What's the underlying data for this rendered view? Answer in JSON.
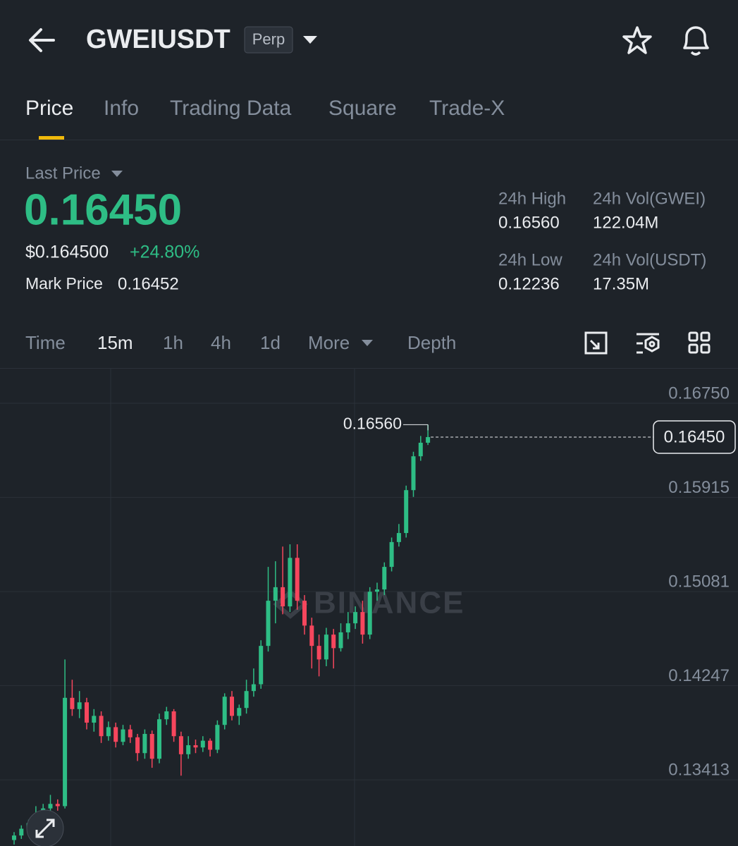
{
  "header": {
    "symbol": "GWEIUSDT",
    "badge": "Perp"
  },
  "tabs": [
    "Price",
    "Info",
    "Trading Data",
    "Square",
    "Trade-X"
  ],
  "ticker": {
    "last_price_label": "Last Price",
    "last_price": "0.16450",
    "usd_price": "$0.164500",
    "change": "+24.80%",
    "mark_price_label": "Mark Price",
    "mark_price": "0.16452",
    "stats": [
      {
        "label": "24h High",
        "value": "0.16560"
      },
      {
        "label": "24h Vol(GWEI)",
        "value": "122.04M"
      },
      {
        "label": "24h Low",
        "value": "0.12236"
      },
      {
        "label": "24h Vol(USDT)",
        "value": "17.35M"
      }
    ]
  },
  "intervals": [
    "Time",
    "15m",
    "1h",
    "4h",
    "1d",
    "More",
    "Depth"
  ],
  "chart_data": {
    "type": "candlestick",
    "watermark": "BINANCE",
    "up_color": "#2ebd85",
    "down_color": "#f6465d",
    "grid": true,
    "ylim": [
      0.12827,
      0.17062
    ],
    "yticks": [
      {
        "value": 0.1675,
        "label": "0.16750"
      },
      0.15915,
      0.15081,
      0.14247,
      0.13413
    ],
    "high_marker": {
      "value": 0.1656,
      "label": "0.16560"
    },
    "last_marker": {
      "value": 0.1645,
      "label": "0.16450"
    },
    "open": [
      0.1288,
      0.1292,
      0.1298,
      0.1303,
      0.131,
      0.1316,
      0.132,
      0.1318,
      0.1414,
      0.1404,
      0.141,
      0.1392,
      0.1398,
      0.138,
      0.1388,
      0.1375,
      0.1386,
      0.1379,
      0.1365,
      0.1382,
      0.136,
      0.1395,
      0.1402,
      0.138,
      0.1364,
      0.1372,
      0.137,
      0.1376,
      0.1368,
      0.139,
      0.1415,
      0.1398,
      0.1405,
      0.142,
      0.1426,
      0.146,
      0.15,
      0.1512,
      0.1495,
      0.1538,
      0.15,
      0.1478,
      0.146,
      0.1448,
      0.147,
      0.1458,
      0.1472,
      0.148,
      0.149,
      0.147,
      0.1508,
      0.151,
      0.153,
      0.1552,
      0.156,
      0.1598,
      0.1628,
      0.164
    ],
    "high": [
      0.1295,
      0.1301,
      0.1306,
      0.1318,
      0.132,
      0.1328,
      0.1324,
      0.1448,
      0.143,
      0.142,
      0.1414,
      0.1404,
      0.1402,
      0.1393,
      0.1392,
      0.139,
      0.139,
      0.1382,
      0.1386,
      0.1385,
      0.14,
      0.1406,
      0.1404,
      0.1384,
      0.138,
      0.1377,
      0.138,
      0.1378,
      0.1394,
      0.1418,
      0.142,
      0.1408,
      0.143,
      0.144,
      0.1465,
      0.153,
      0.1535,
      0.1548,
      0.155,
      0.155,
      0.1505,
      0.1485,
      0.147,
      0.1476,
      0.1475,
      0.148,
      0.149,
      0.1495,
      0.15,
      0.1512,
      0.1516,
      0.1534,
      0.1556,
      0.1568,
      0.1602,
      0.1632,
      0.1646,
      0.1656
    ],
    "low": [
      0.1284,
      0.1289,
      0.1295,
      0.13,
      0.1306,
      0.1312,
      0.1314,
      0.1316,
      0.1398,
      0.1396,
      0.1386,
      0.1384,
      0.1374,
      0.1376,
      0.137,
      0.1372,
      0.1374,
      0.1358,
      0.136,
      0.1352,
      0.1356,
      0.139,
      0.1375,
      0.1345,
      0.136,
      0.1365,
      0.1366,
      0.1362,
      0.1365,
      0.1386,
      0.1394,
      0.139,
      0.14,
      0.1415,
      0.1422,
      0.1455,
      0.148,
      0.1488,
      0.149,
      0.1492,
      0.147,
      0.144,
      0.1433,
      0.1442,
      0.144,
      0.1455,
      0.1466,
      0.1475,
      0.1462,
      0.1466,
      0.15,
      0.1505,
      0.1526,
      0.1548,
      0.1556,
      0.1592,
      0.1624,
      0.1638
    ],
    "close": [
      0.1292,
      0.1298,
      0.1303,
      0.131,
      0.1316,
      0.132,
      0.1318,
      0.1414,
      0.1404,
      0.141,
      0.1392,
      0.1398,
      0.138,
      0.1388,
      0.1375,
      0.1386,
      0.1379,
      0.1365,
      0.1382,
      0.136,
      0.1395,
      0.1402,
      0.138,
      0.1364,
      0.1372,
      0.137,
      0.1376,
      0.1368,
      0.139,
      0.1415,
      0.1398,
      0.1405,
      0.142,
      0.1426,
      0.146,
      0.15,
      0.1512,
      0.1495,
      0.1538,
      0.15,
      0.1478,
      0.146,
      0.1448,
      0.147,
      0.1458,
      0.1472,
      0.148,
      0.149,
      0.147,
      0.1508,
      0.151,
      0.153,
      0.1552,
      0.156,
      0.1598,
      0.1628,
      0.164,
      0.1645
    ]
  }
}
